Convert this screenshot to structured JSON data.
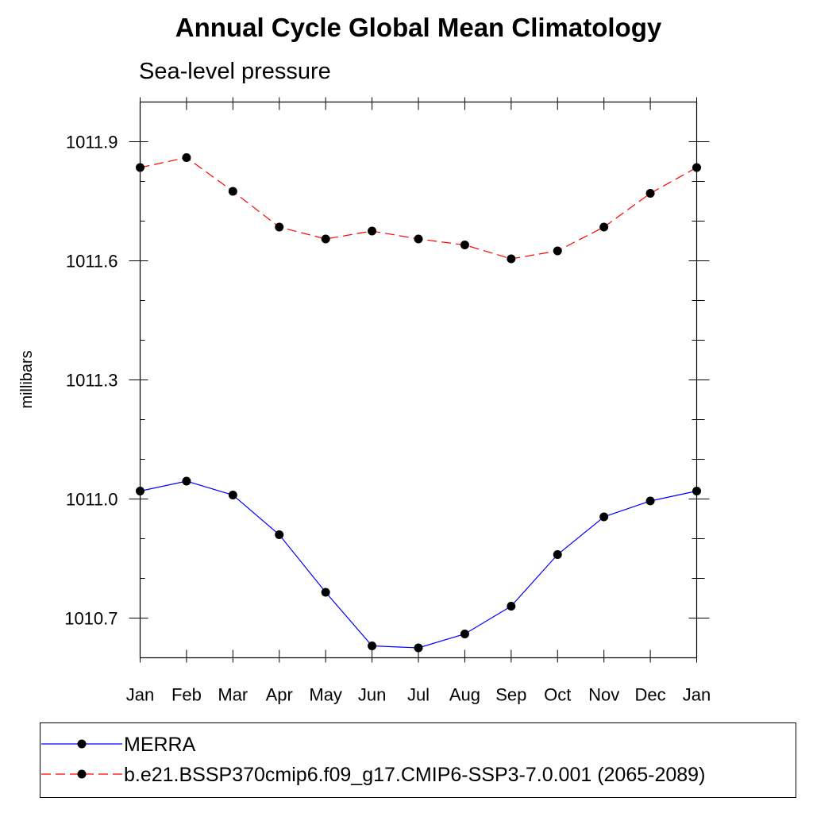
{
  "chart_data": {
    "type": "line",
    "title": "Annual Cycle Global Mean Climatology",
    "subtitle": "Sea-level pressure",
    "xlabel": "",
    "ylabel": "millibars",
    "categories": [
      "Jan",
      "Feb",
      "Mar",
      "Apr",
      "May",
      "Jun",
      "Jul",
      "Aug",
      "Sep",
      "Oct",
      "Nov",
      "Dec",
      "Jan"
    ],
    "ylim": [
      1010.6,
      1012.0
    ],
    "yticks": [
      1010.7,
      1011.0,
      1011.3,
      1011.6,
      1011.9
    ],
    "ytick_labels": [
      "1010.7",
      "1011.0",
      "1011.3",
      "1011.6",
      "1011.9"
    ],
    "grid": false,
    "legend_position": "bottom",
    "series": [
      {
        "name": "MERRA",
        "color": "#0000ff",
        "line_style": "solid",
        "marker": "filled-circle",
        "values": [
          1011.02,
          1011.045,
          1011.01,
          1010.91,
          1010.765,
          1010.63,
          1010.625,
          1010.66,
          1010.73,
          1010.86,
          1010.955,
          1010.995,
          1011.02
        ]
      },
      {
        "name": "b.e21.BSSP370cmip6.f09_g17.CMIP6-SSP3-7.0.001 (2065-2089)",
        "color": "#ff0000",
        "line_style": "dashed",
        "marker": "filled-circle",
        "values": [
          1011.835,
          1011.86,
          1011.775,
          1011.685,
          1011.655,
          1011.675,
          1011.655,
          1011.64,
          1011.605,
          1011.625,
          1011.685,
          1011.77,
          1011.835
        ]
      }
    ]
  }
}
